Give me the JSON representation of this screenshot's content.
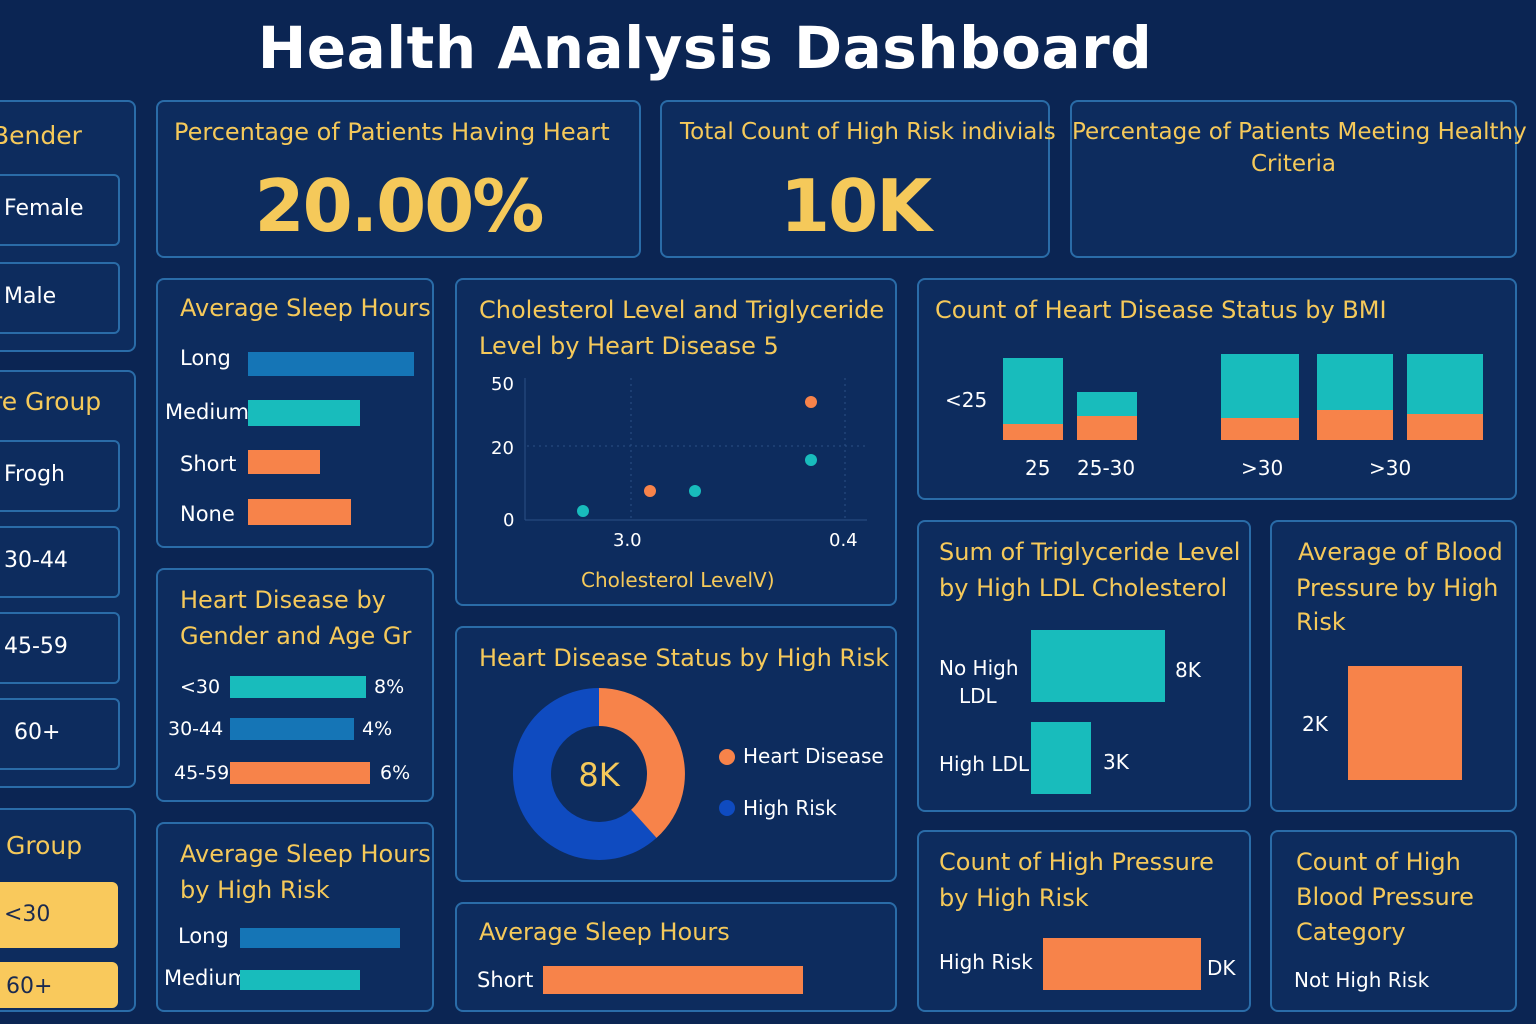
{
  "title": "Health Analysis Dashboard",
  "colors": {
    "teal": "#18bcbc",
    "blue": "#1575b6",
    "orange": "#f7834a",
    "donut_blue": "#0f4bc0",
    "yellow": "#f5c95a"
  },
  "slicers": {
    "gender": {
      "title": "Bender",
      "options": [
        "Female",
        "Male"
      ]
    },
    "age_group": {
      "title": "re Group",
      "options": [
        "Frogh",
        "30-44",
        "45-59",
        "60+"
      ]
    },
    "group": {
      "title": "Group",
      "options": [
        "<30",
        "60+"
      ],
      "selected": [
        "<30",
        "60+"
      ]
    }
  },
  "kpis": [
    {
      "title": "Percentage of Patients Having Heart",
      "value": "20.00%"
    },
    {
      "title": "Total Count of High Risk indivials",
      "value": "10K"
    },
    {
      "title_line1": "Percentage of Patients Meeting Healthy",
      "title_line2": "Criteria",
      "value": ""
    }
  ],
  "sleep1": {
    "title": "Average Sleep Hours",
    "rows": [
      {
        "label": "Long",
        "value": 1.0,
        "color": "blue"
      },
      {
        "label": "Medium",
        "value": 0.67,
        "color": "teal"
      },
      {
        "label": "Short",
        "value": 0.43,
        "color": "orange"
      },
      {
        "label": "None",
        "value": 0.62,
        "color": "orange"
      }
    ]
  },
  "gender_age": {
    "title_line1": "Heart Disease by",
    "title_line2": "Gender and Age Gr",
    "rows": [
      {
        "label": "<30",
        "value": "8%",
        "num": 8,
        "color": "teal"
      },
      {
        "label": "30-44",
        "value": "4%",
        "num": 4,
        "color": "blue"
      },
      {
        "label": "45-59",
        "value": "6%",
        "num": 6,
        "color": "orange"
      }
    ]
  },
  "sleep2": {
    "title_line1": "Average Sleep Hours",
    "title_line2": "by High Risk",
    "rows": [
      {
        "label": "Long",
        "value": 1.0,
        "color": "blue"
      },
      {
        "label": "Medium",
        "value": 0.74,
        "color": "teal"
      }
    ]
  },
  "scatter": {
    "title_line1": "Cholesterol Level and Triglyceride",
    "title_line2": "Level by Heart Disease 5",
    "xlabel": "Cholesterol LevelV)",
    "yticks": [
      "50",
      "20",
      "0"
    ],
    "xticks": [
      "3.0",
      "0.4"
    ]
  },
  "donut": {
    "title": "Heart Disease Status by High Risk",
    "center": "8K",
    "legend": [
      "Heart Disease",
      "High Risk"
    ]
  },
  "sleep3": {
    "title": "Average Sleep Hours",
    "rows": [
      {
        "label": "Short",
        "value": 1.0,
        "color": "orange"
      }
    ]
  },
  "bmi": {
    "title": "Count of Heart Disease Status by BMI",
    "ylabel": "<25",
    "xticks": [
      "25",
      "25-30",
      ">30",
      ">30"
    ]
  },
  "trig": {
    "title_line1": "Sum of Triglyceride Level",
    "title_line2": "by High LDL Cholesterol",
    "rows": [
      {
        "label_line1": "No High",
        "label_line2": "LDL",
        "value": "8K",
        "num": 8
      },
      {
        "label_line1": "High LDL",
        "label_line2": "",
        "value": "3K",
        "num": 3
      }
    ]
  },
  "bp": {
    "title_line1": "Average of Blood",
    "title_line2": "Pressure by High",
    "title_line3": "Risk",
    "value": "2K"
  },
  "pressure": {
    "title_line1": "Count of High Pressure",
    "title_line2": "by High Risk",
    "label": "High Risk",
    "value": "DK"
  },
  "bpcat": {
    "title_line1": "Count of High",
    "title_line2": "Blood Pressure",
    "title_line3": "Category",
    "label": "Not High Risk"
  },
  "chart_data": [
    {
      "type": "bar",
      "title": "Heart Disease by Gender and Age Gr",
      "categories": [
        "<30",
        "30-44",
        "45-59"
      ],
      "values": [
        8,
        4,
        6
      ]
    },
    {
      "type": "scatter",
      "title": "Cholesterol Level and Triglyceride Level by Heart Disease 5",
      "xlabel": "Cholesterol LevelV)",
      "series": [
        {
          "color": "orange",
          "points": [
            [
              0.4,
              43
            ],
            [
              0.33,
              9
            ]
          ]
        },
        {
          "color": "teal",
          "points": [
            [
              0.4,
              23
            ],
            [
              0.53,
              9
            ],
            [
              0.22,
              3
            ]
          ]
        }
      ]
    },
    {
      "type": "pie",
      "title": "Heart Disease Status by High Risk",
      "categories": [
        "Heart Disease",
        "High Risk"
      ],
      "values": [
        35,
        65
      ]
    },
    {
      "type": "bar",
      "title": "Count of Heart Disease Status by BMI",
      "categories": [
        "25",
        "25-30",
        ">30",
        ">30"
      ],
      "series": [
        {
          "color": "orange",
          "values": [
            4,
            5,
            5,
            6
          ]
        },
        {
          "color": "teal",
          "values": [
            14,
            5,
            14,
            11
          ]
        }
      ]
    },
    {
      "type": "bar",
      "title": "Sum of Triglyceride Level by High LDL Cholesterol",
      "categories": [
        "No High LDL",
        "High LDL"
      ],
      "values": [
        8000,
        3000
      ]
    }
  ]
}
